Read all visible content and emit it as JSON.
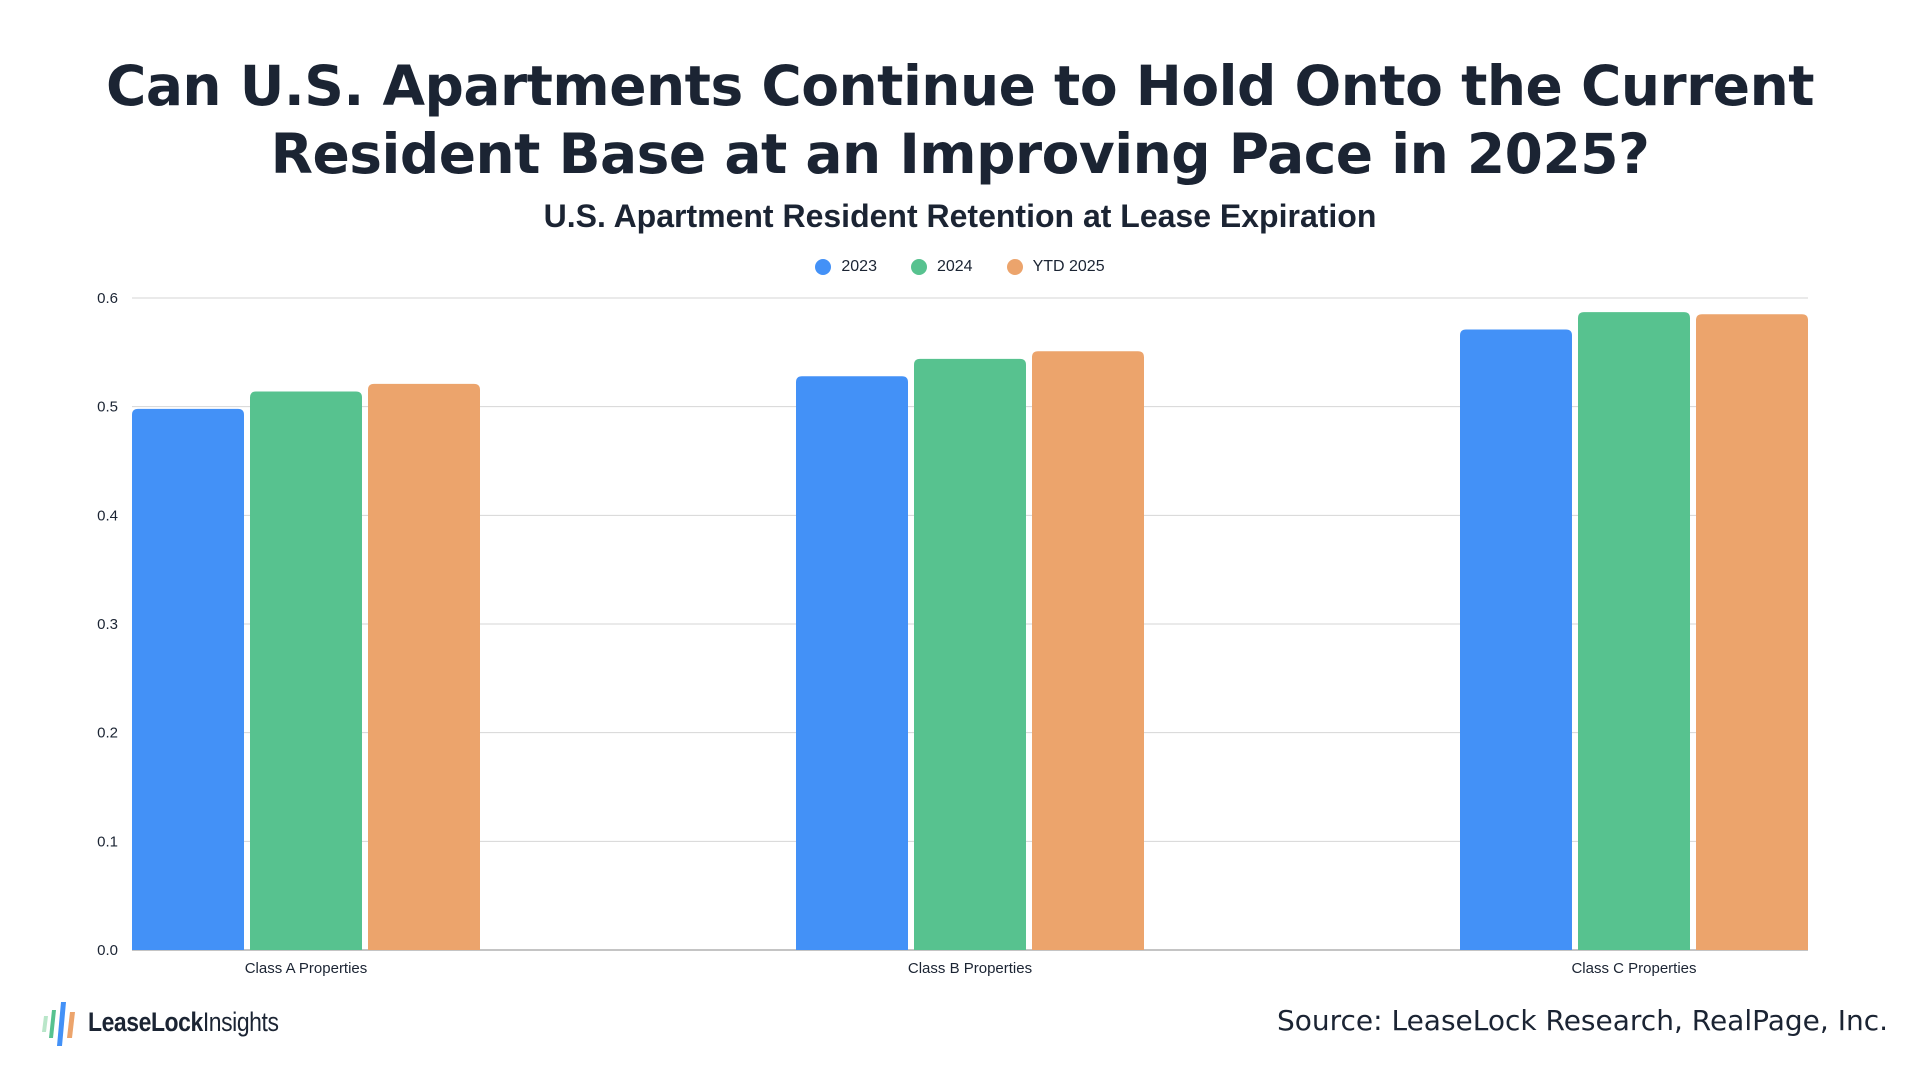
{
  "title_lines": [
    "Can U.S. Apartments Continue to Hold Onto the Current",
    "Resident Base at an Improving Pace in 2025?"
  ],
  "subtitle": "U.S. Apartment Resident Retention at Lease Expiration",
  "footer": {
    "logo_bold": "LeaseLock",
    "logo_light": "Insights",
    "source": "Source: LeaseLock Research, RealPage, Inc."
  },
  "colors": {
    "gridline": "#d6d6d6",
    "axis": "#b0b0b0"
  },
  "chart_data": {
    "type": "bar",
    "categories": [
      "Class A Properties",
      "Class B Properties",
      "Class C Properties"
    ],
    "series": [
      {
        "name": "2023",
        "color": "#4391f7",
        "values": [
          0.498,
          0.528,
          0.571
        ]
      },
      {
        "name": "2024",
        "color": "#57c28f",
        "values": [
          0.514,
          0.544,
          0.587
        ]
      },
      {
        "name": "YTD 2025",
        "color": "#eca46c",
        "values": [
          0.521,
          0.551,
          0.585
        ]
      }
    ],
    "title": "Can U.S. Apartments Continue to Hold Onto the Current Resident Base at an Improving Pace in 2025?",
    "subtitle": "U.S. Apartment Resident Retention at Lease Expiration",
    "ylim": [
      0,
      0.6
    ],
    "yticks": [
      "0.0",
      "0.1",
      "0.2",
      "0.3",
      "0.4",
      "0.5",
      "0.6"
    ],
    "grid": true,
    "legend_position": "top-center"
  }
}
